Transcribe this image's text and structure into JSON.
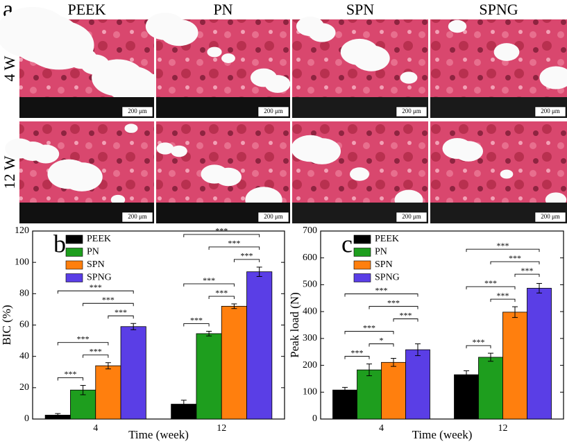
{
  "panel_a": {
    "label": "a",
    "columns": [
      "PEEK",
      "PN",
      "SPN",
      "SPNG"
    ],
    "rows": [
      "4 W",
      "12 W"
    ],
    "scale_bar": "200 μm"
  },
  "chart_data": [
    {
      "type": "bar",
      "panel_label": "b",
      "ylabel": "BIC (%)",
      "xlabel": "Time (week)",
      "categories": [
        "4",
        "12"
      ],
      "ylim": [
        0,
        120
      ],
      "yticks": [
        0,
        20,
        40,
        60,
        80,
        100,
        120
      ],
      "legend": "upper left",
      "series": [
        {
          "name": "PEEK",
          "color": "#000000",
          "values": [
            2.5,
            9.5
          ],
          "errors": [
            1,
            2.5
          ]
        },
        {
          "name": "PN",
          "color": "#1e9e1e",
          "values": [
            18.5,
            54.5
          ],
          "errors": [
            3,
            1.5
          ]
        },
        {
          "name": "SPN",
          "color": "#ff7f0e",
          "values": [
            34,
            72
          ],
          "errors": [
            2,
            1.5
          ]
        },
        {
          "name": "SPNG",
          "color": "#5a3ee6",
          "values": [
            59,
            94
          ],
          "errors": [
            2,
            3
          ]
        }
      ],
      "significance": [
        {
          "category": 0,
          "from": 0,
          "to": 1,
          "label": "***"
        },
        {
          "category": 0,
          "from": 1,
          "to": 2,
          "label": "***"
        },
        {
          "category": 0,
          "from": 0,
          "to": 2,
          "label": "***"
        },
        {
          "category": 0,
          "from": 2,
          "to": 3,
          "label": "***"
        },
        {
          "category": 0,
          "from": 1,
          "to": 3,
          "label": "***"
        },
        {
          "category": 0,
          "from": 0,
          "to": 3,
          "label": "***"
        },
        {
          "category": 1,
          "from": 0,
          "to": 1,
          "label": "***"
        },
        {
          "category": 1,
          "from": 1,
          "to": 2,
          "label": "***"
        },
        {
          "category": 1,
          "from": 0,
          "to": 2,
          "label": "***"
        },
        {
          "category": 1,
          "from": 2,
          "to": 3,
          "label": "***"
        },
        {
          "category": 1,
          "from": 1,
          "to": 3,
          "label": "***"
        },
        {
          "category": 1,
          "from": 0,
          "to": 3,
          "label": "***"
        }
      ]
    },
    {
      "type": "bar",
      "panel_label": "c",
      "ylabel": "Peak load (N)",
      "xlabel": "Time (week)",
      "categories": [
        "4",
        "12"
      ],
      "ylim": [
        0,
        700
      ],
      "yticks": [
        0,
        100,
        200,
        300,
        400,
        500,
        600,
        700
      ],
      "legend": "upper left",
      "series": [
        {
          "name": "PEEK",
          "color": "#000000",
          "values": [
            108,
            165
          ],
          "errors": [
            10,
            15
          ]
        },
        {
          "name": "PN",
          "color": "#1e9e1e",
          "values": [
            183,
            230
          ],
          "errors": [
            22,
            15
          ]
        },
        {
          "name": "SPN",
          "color": "#ff7f0e",
          "values": [
            211,
            398
          ],
          "errors": [
            15,
            20
          ]
        },
        {
          "name": "SPNG",
          "color": "#5a3ee6",
          "values": [
            258,
            487
          ],
          "errors": [
            22,
            18
          ]
        }
      ],
      "significance": [
        {
          "category": 0,
          "from": 0,
          "to": 1,
          "label": "***"
        },
        {
          "category": 0,
          "from": 1,
          "to": 2,
          "label": "*"
        },
        {
          "category": 0,
          "from": 0,
          "to": 2,
          "label": "***"
        },
        {
          "category": 0,
          "from": 2,
          "to": 3,
          "label": "***"
        },
        {
          "category": 0,
          "from": 1,
          "to": 3,
          "label": "***"
        },
        {
          "category": 0,
          "from": 0,
          "to": 3,
          "label": "***"
        },
        {
          "category": 1,
          "from": 0,
          "to": 1,
          "label": "***"
        },
        {
          "category": 1,
          "from": 1,
          "to": 2,
          "label": "***"
        },
        {
          "category": 1,
          "from": 0,
          "to": 2,
          "label": "***"
        },
        {
          "category": 1,
          "from": 2,
          "to": 3,
          "label": "***"
        },
        {
          "category": 1,
          "from": 1,
          "to": 3,
          "label": "***"
        },
        {
          "category": 1,
          "from": 0,
          "to": 3,
          "label": "***"
        }
      ]
    }
  ]
}
